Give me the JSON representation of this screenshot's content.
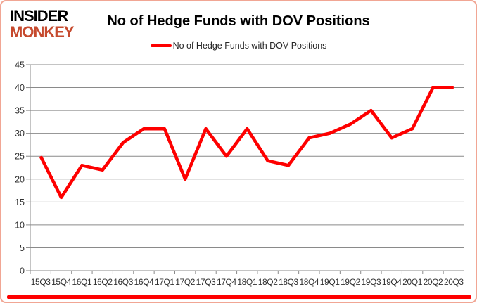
{
  "header": {
    "logo_line1": "INSIDER",
    "logo_line2": "MONKEY",
    "title": "No of Hedge Funds with DOV Positions"
  },
  "legend": {
    "label": "No of Hedge Funds with DOV Positions"
  },
  "colors": {
    "line": "#fe0000",
    "logo_accent": "#c64a2e",
    "grid": "#8a8a8a",
    "axis_text": "#303030",
    "border": "#f1a694",
    "bottom_bar": "#fe0000"
  },
  "chart_data": {
    "type": "line",
    "title": "No of Hedge Funds with DOV Positions",
    "categories": [
      "15Q3",
      "15Q4",
      "16Q1",
      "16Q2",
      "16Q3",
      "16Q4",
      "17Q1",
      "17Q2",
      "17Q3",
      "17Q4",
      "18Q1",
      "18Q2",
      "18Q3",
      "18Q4",
      "19Q1",
      "19Q2",
      "19Q3",
      "19Q4",
      "20Q1",
      "20Q2",
      "20Q3"
    ],
    "series": [
      {
        "name": "No of Hedge Funds with DOV Positions",
        "color": "#fe0000",
        "values": [
          25,
          16,
          23,
          22,
          28,
          31,
          31,
          20,
          31,
          25,
          31,
          24,
          23,
          29,
          30,
          32,
          35,
          29,
          31,
          40,
          40
        ]
      }
    ],
    "xlabel": "",
    "ylabel": "",
    "ylim": [
      0,
      45
    ],
    "ytick_step": 5,
    "grid": true,
    "legend_position": "top-center"
  }
}
